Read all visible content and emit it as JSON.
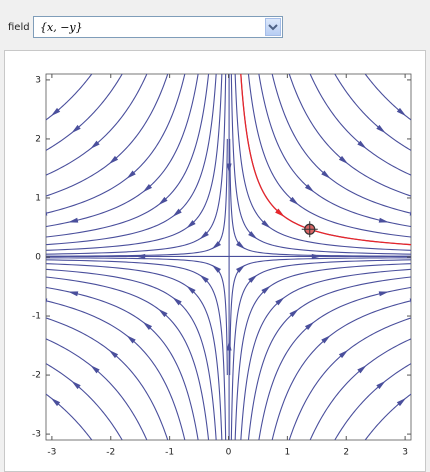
{
  "chart_data": {
    "type": "streamplot",
    "control_label": "field",
    "field": "{x, −y}",
    "xlim": [
      -3.1,
      3.1
    ],
    "ylim": [
      -3.1,
      3.1
    ],
    "xticks": [
      -3,
      -2,
      -1,
      0,
      1,
      2,
      3
    ],
    "yticks": [
      -3,
      -2,
      -1,
      0,
      1,
      2,
      3
    ],
    "color": "#4a4f9c",
    "highlight_color": "#e8262a",
    "locator": {
      "x": 1.38,
      "y": 0.47
    }
  }
}
